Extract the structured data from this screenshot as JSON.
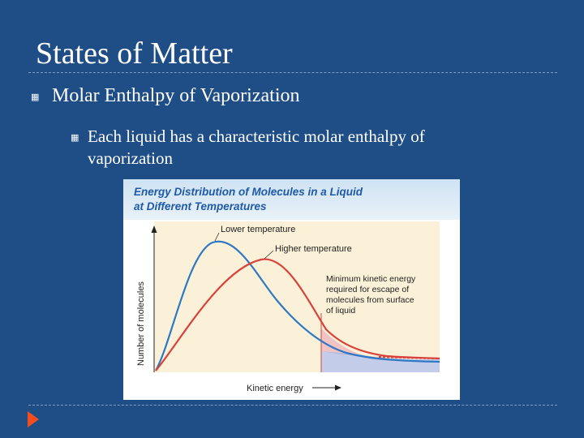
{
  "slide": {
    "title": "States of Matter",
    "bullet_level1": "Molar Enthalpy of Vaporization",
    "bullet_level2": "Each liquid has a characteristic molar enthalpy of vaporization"
  },
  "figure": {
    "title_line1": "Energy Distribution of Molecules in a Liquid",
    "title_line2": "at Different Temperatures",
    "label_lower": "Lower temperature",
    "label_higher": "Higher temperature",
    "annotation": [
      "Minimum kinetic energy",
      "required for escape of",
      "molecules from surface",
      "of liquid"
    ],
    "ylabel": "Number of molecules",
    "xlabel": "Kinetic energy"
  },
  "colors": {
    "background": "#1f4e86",
    "lower_curve": "#2e78c4",
    "higher_curve": "#d9423b",
    "title_text": "#1e5aa8",
    "arrow": "#f24e1e"
  },
  "icons": {
    "bullet": "square-bullet-icon",
    "nav": "next-arrow-icon"
  }
}
